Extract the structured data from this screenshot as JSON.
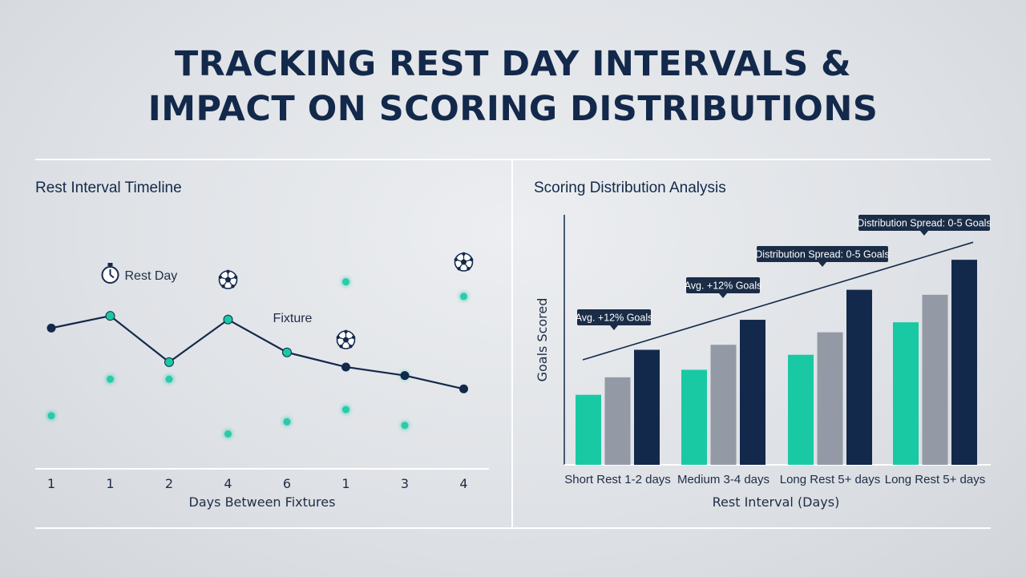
{
  "title": {
    "line1": "TRACKING REST DAY INTERVALS &",
    "line2": "IMPACT ON SCORING DISTRIBUTIONS"
  },
  "colors": {
    "navy": "#13294b",
    "teal": "#19c9a4",
    "gray": "#939aa5"
  },
  "chart_data": [
    {
      "type": "line",
      "title": "Rest Interval Timeline",
      "xlabel": "Days Between Fixtures",
      "x_tick_labels": [
        "1",
        "1",
        "2",
        "4",
        "6",
        "1",
        "3",
        "4"
      ],
      "grid": false,
      "series": [
        {
          "values": [
            0.53,
            0.63,
            0.25,
            0.6,
            0.33,
            0.21,
            0.14,
            0.03
          ]
        }
      ],
      "scatter_points": [
        {
          "x": 0,
          "y": -0.19
        },
        {
          "x": 1,
          "y": 0.11
        },
        {
          "x": 2,
          "y": 0.11
        },
        {
          "x": 3,
          "y": -0.34
        },
        {
          "x": 4,
          "y": -0.24
        },
        {
          "x": 5,
          "y": -0.14
        },
        {
          "x": 5,
          "y": 0.91
        },
        {
          "x": 6,
          "y": 0.14
        },
        {
          "x": 6,
          "y": -0.27
        },
        {
          "x": 7,
          "y": 0.79
        }
      ],
      "annotations": [
        {
          "text": "Rest Day",
          "x": 1,
          "icon": "stopwatch-icon"
        },
        {
          "text": "",
          "x": 3,
          "icon": "soccer-ball-icon"
        },
        {
          "text": "Fixture",
          "x": 4,
          "icon": ""
        },
        {
          "text": "",
          "x": 5,
          "icon": "soccer-ball-icon"
        },
        {
          "text": "",
          "x": 7,
          "icon": "soccer-ball-icon"
        }
      ]
    },
    {
      "type": "bar",
      "title": "Scoring Distribution Analysis",
      "xlabel": "Rest Interval (Days)",
      "ylabel": "Goals Scored",
      "categories": [
        "Short Rest 1-2 days",
        "Medium 3-4 days",
        "Long Rest 5+ days",
        "Long Rest 5+ days"
      ],
      "grid": false,
      "series": [
        {
          "color": "#19c9a4",
          "values": [
            0.28,
            0.38,
            0.44,
            0.57
          ]
        },
        {
          "color": "#939aa5",
          "values": [
            0.35,
            0.48,
            0.53,
            0.68
          ]
        },
        {
          "color": "#13294b",
          "values": [
            0.46,
            0.58,
            0.7,
            0.82
          ]
        }
      ],
      "trend_line": {
        "from": 0.42,
        "to": 0.89
      },
      "annotations": [
        {
          "text": "Avg. +12% Goals",
          "category": 0
        },
        {
          "text": "Avg. +12% Goals",
          "category": 1
        },
        {
          "text": "Distribution Spread: 0-5 Goals",
          "category": 2
        },
        {
          "text": "Distribution Spread: 0-5 Goals",
          "category": 3
        }
      ]
    }
  ]
}
